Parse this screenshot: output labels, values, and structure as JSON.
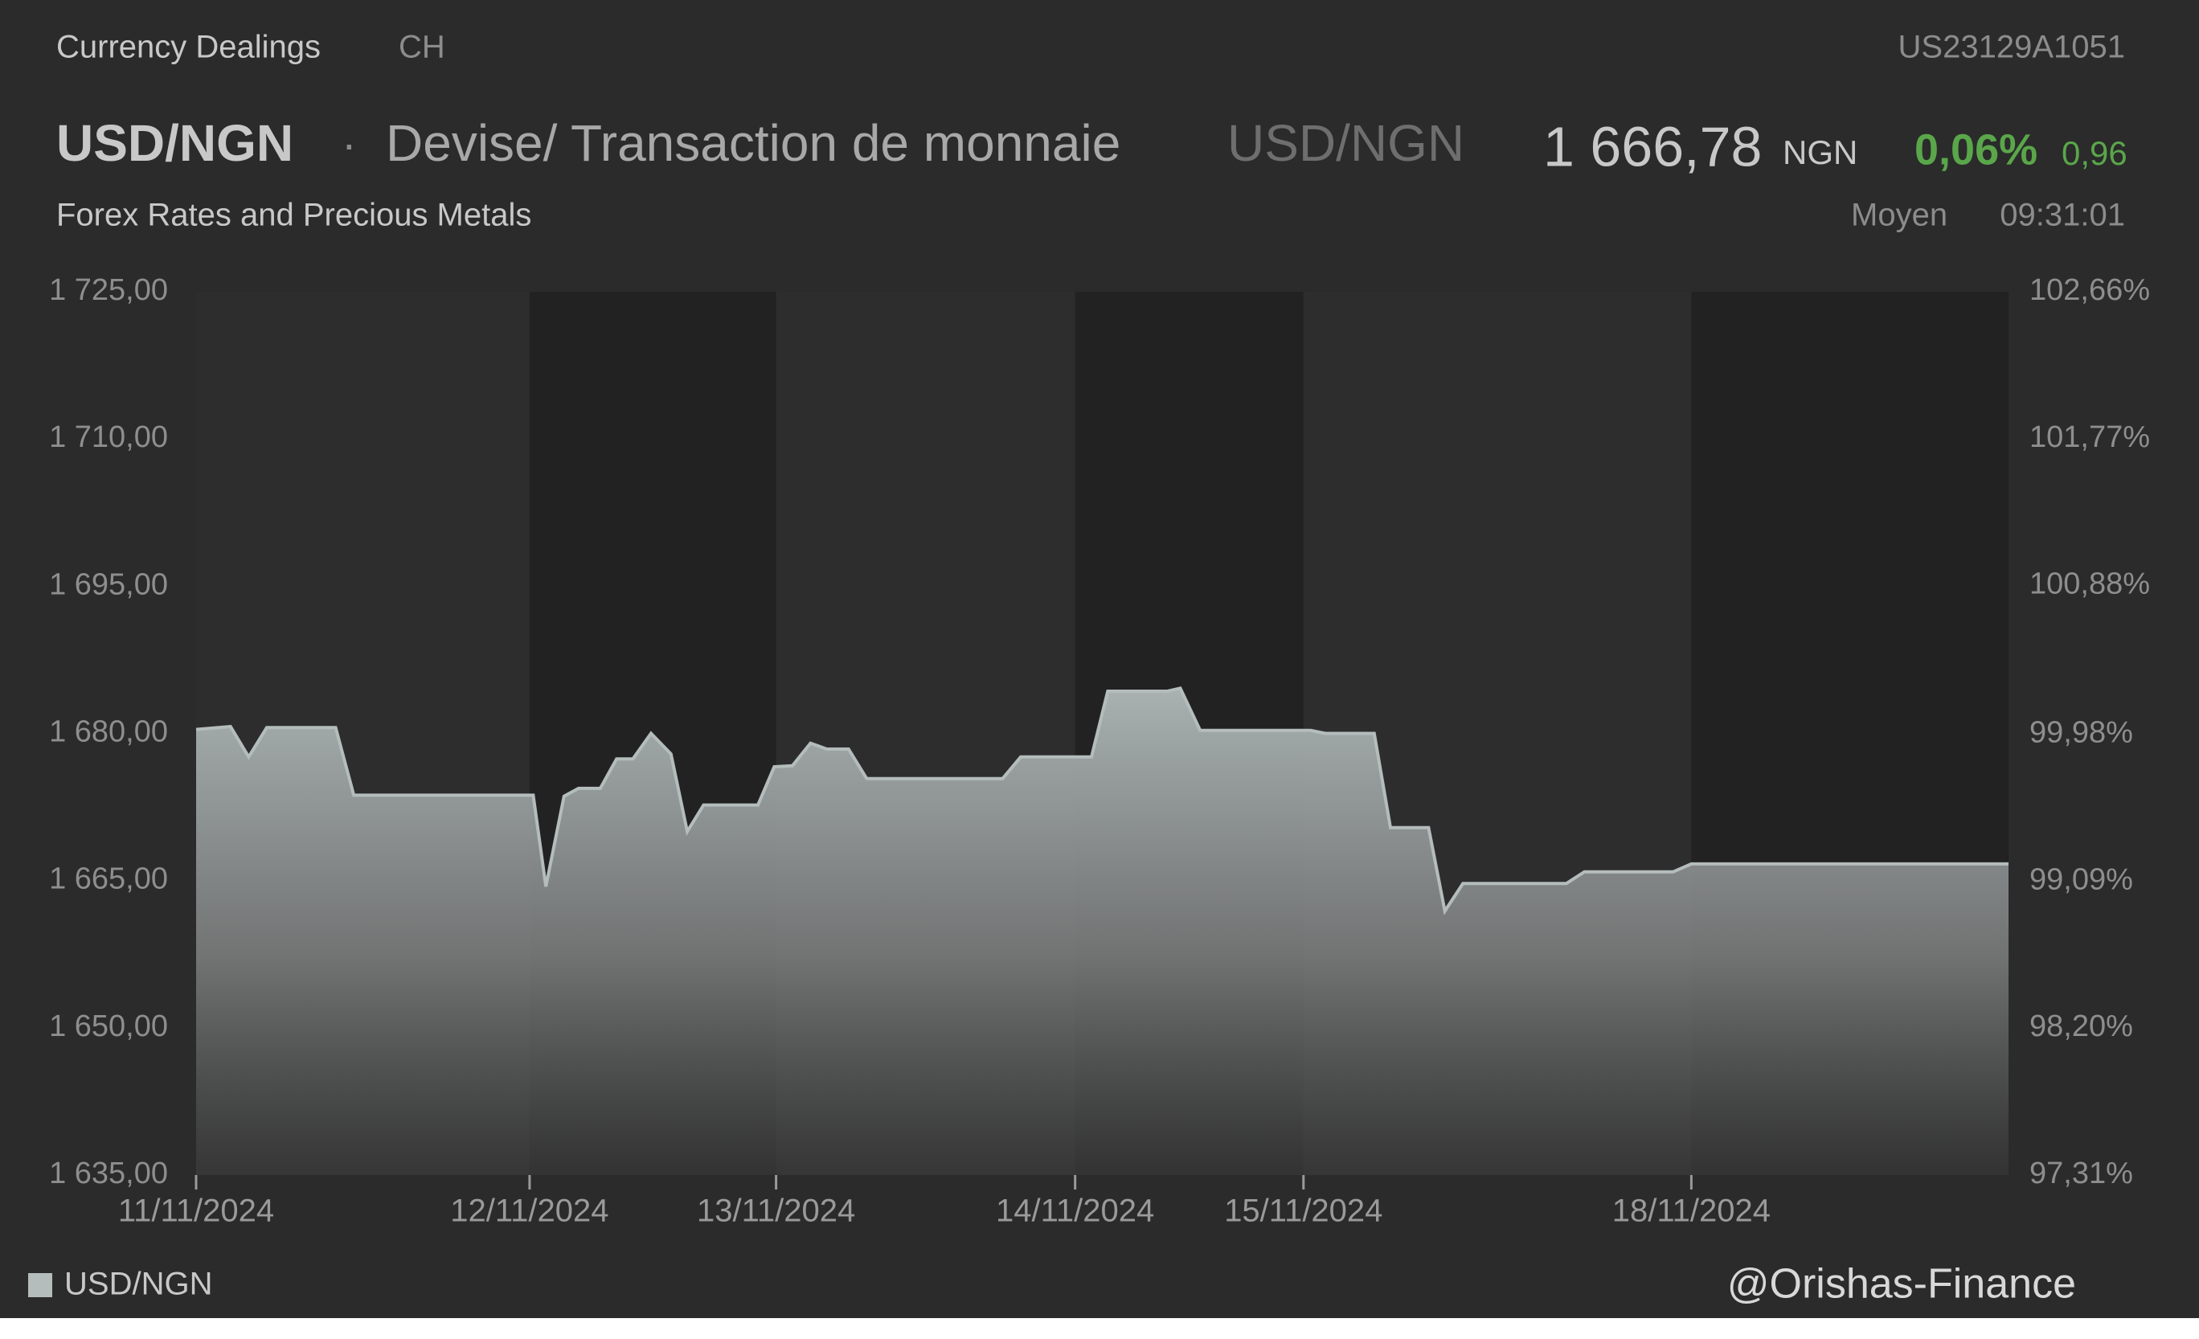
{
  "header": {
    "section": "Currency Dealings",
    "country": "CH",
    "isin": "US23129A1051",
    "symbol": "USD/NGN",
    "description": "Devise/ Transaction de monnaie",
    "symbol_alt": "USD/NGN",
    "price": "1 666,78",
    "currency": "NGN",
    "change_pct": "0,06%",
    "change_abs": "0,96",
    "category": "Forex Rates and Precious Metals",
    "quote_type": "Moyen",
    "time": "09:31:01",
    "watermark": "@Orishas-Finance"
  },
  "chart_data": {
    "type": "area",
    "x": [
      0,
      1.9,
      2.9,
      3.9,
      7.7,
      8.7,
      18.6,
      19.3,
      20.3,
      21.1,
      22.3,
      23.2,
      24.1,
      25.1,
      26.2,
      27.1,
      28.0,
      31.0,
      31.9,
      32.9,
      33.9,
      34.8,
      36.0,
      37.0,
      44.5,
      45.5,
      49.4,
      50.3,
      53.6,
      54.3,
      55.4,
      61.5,
      62.3,
      65.0,
      65.9,
      68.0,
      68.9,
      69.9,
      75.6,
      76.6,
      81.5,
      82.5,
      100
    ],
    "series": [
      {
        "name": "USD/NGN",
        "color": "#b4bcbc",
        "values": [
          1680.4,
          1680.7,
          1677.6,
          1680.6,
          1680.6,
          1673.7,
          1673.7,
          1664.4,
          1673.6,
          1674.4,
          1674.4,
          1677.4,
          1677.4,
          1680.0,
          1677.9,
          1670.0,
          1672.7,
          1672.7,
          1676.6,
          1676.7,
          1679.0,
          1678.4,
          1678.4,
          1675.4,
          1675.4,
          1677.6,
          1677.6,
          1684.3,
          1684.3,
          1684.6,
          1680.3,
          1680.3,
          1680.0,
          1680.0,
          1670.4,
          1670.4,
          1661.9,
          1664.7,
          1664.7,
          1665.9,
          1665.9,
          1666.7,
          1666.7
        ]
      }
    ],
    "xlim": [
      0,
      100
    ],
    "xticks": [
      {
        "value": 0,
        "label": "11/11/2024"
      },
      {
        "value": 18.4,
        "label": "12/11/2024"
      },
      {
        "value": 32.0,
        "label": "13/11/2024"
      },
      {
        "value": 48.5,
        "label": "14/11/2024"
      },
      {
        "value": 61.1,
        "label": "15/11/2024"
      },
      {
        "value": 82.5,
        "label": "18/11/2024"
      }
    ],
    "ylim": [
      1635,
      1725
    ],
    "yticks": [
      {
        "value": 1725,
        "label": "1 725,00"
      },
      {
        "value": 1710,
        "label": "1 710,00"
      },
      {
        "value": 1695,
        "label": "1 695,00"
      },
      {
        "value": 1680,
        "label": "1 680,00"
      },
      {
        "value": 1665,
        "label": "1 665,00"
      },
      {
        "value": 1650,
        "label": "1 650,00"
      },
      {
        "value": 1635,
        "label": "1 635,00"
      }
    ],
    "y2lim": [
      97.31,
      102.66
    ],
    "y2ticks": [
      {
        "value": 102.66,
        "label": "102,66%"
      },
      {
        "value": 101.77,
        "label": "101,77%"
      },
      {
        "value": 100.88,
        "label": "100,88%"
      },
      {
        "value": 99.98,
        "label": "99,98%"
      },
      {
        "value": 99.09,
        "label": "99,09%"
      },
      {
        "value": 98.2,
        "label": "98,20%"
      },
      {
        "value": 97.31,
        "label": "97,31%"
      }
    ],
    "grid": false,
    "legend": "bottom-left"
  }
}
